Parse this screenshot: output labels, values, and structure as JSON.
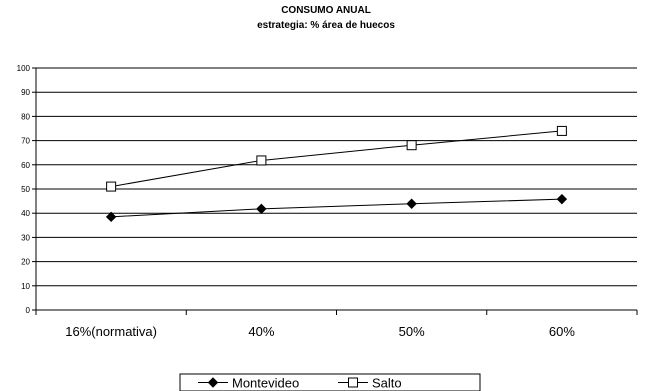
{
  "chart_data": {
    "type": "line",
    "title": "CONSUMO ANUAL",
    "subtitle": "estrategia: % área de huecos",
    "categories": [
      "16%(normativa)",
      "40%",
      "50%",
      "60%"
    ],
    "series": [
      {
        "name": "Montevideo",
        "values": [
          38.5,
          41.8,
          43.9,
          45.8
        ],
        "marker": "filled-diamond",
        "color": "#000000"
      },
      {
        "name": "Salto",
        "values": [
          51,
          61.8,
          68.1,
          74
        ],
        "marker": "hollow-square",
        "color": "#000000"
      }
    ],
    "ylim": [
      0,
      100
    ],
    "yticks": [
      0,
      10,
      20,
      30,
      40,
      50,
      60,
      70,
      80,
      90,
      100
    ],
    "grid": true,
    "legend": "bottom"
  }
}
